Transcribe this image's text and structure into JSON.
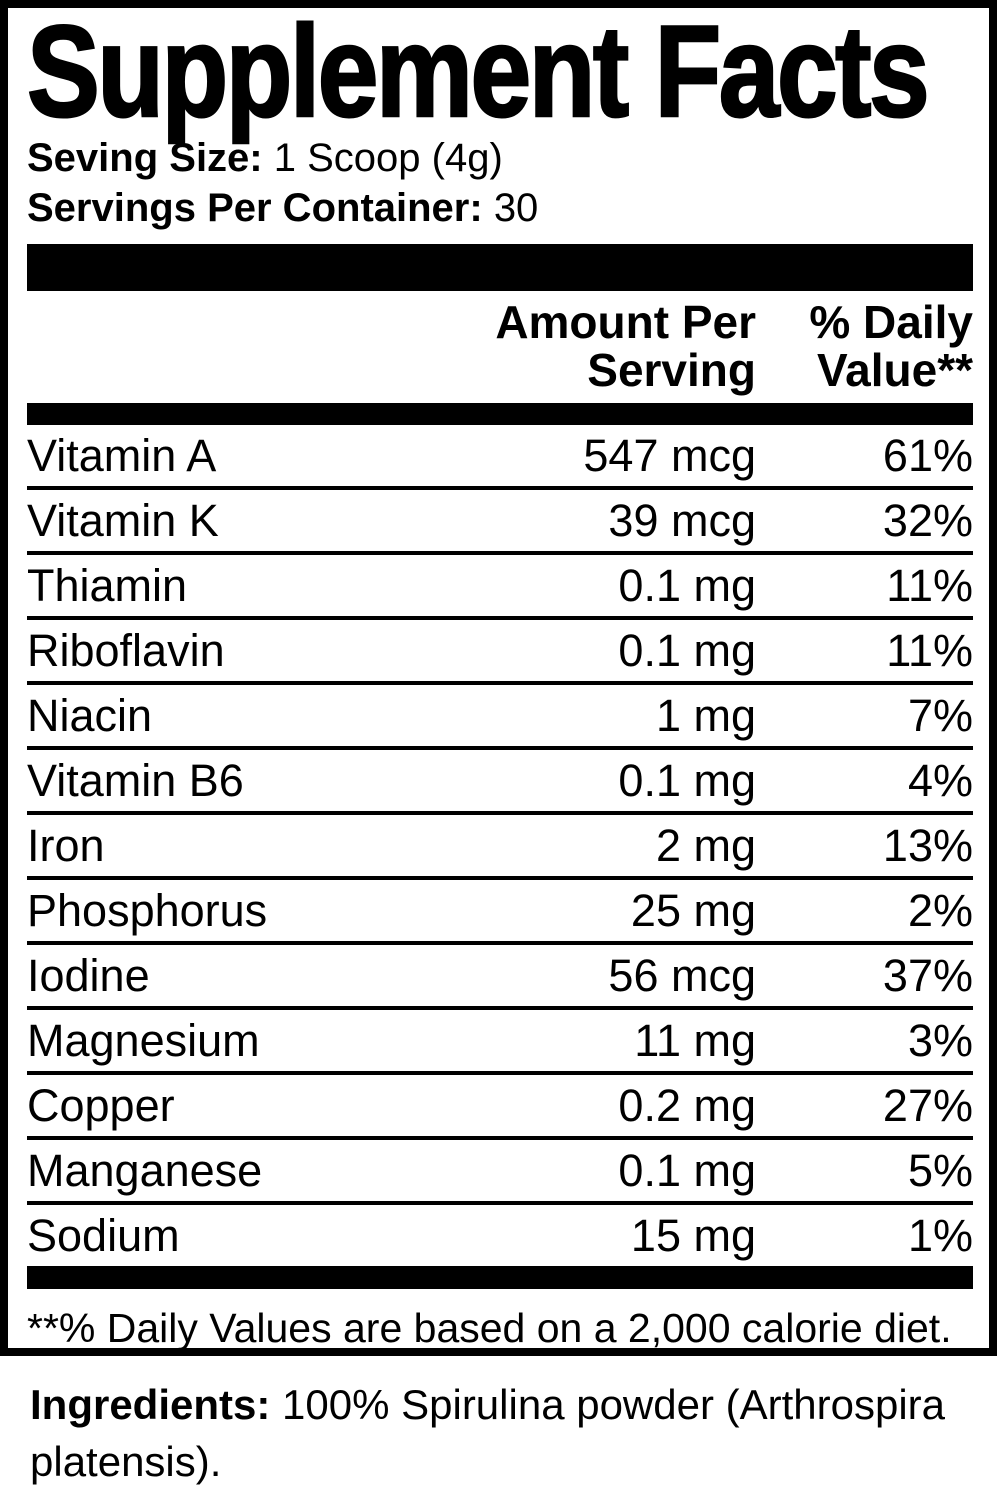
{
  "title": "Supplement Facts",
  "serving": {
    "size_label": "Seving Size:",
    "size_value": "1 Scoop (4g)",
    "per_container_label": "Servings Per Container:",
    "per_container_value": "30"
  },
  "header": {
    "amount": "Amount Per Serving",
    "daily_value": "% Daily Value**"
  },
  "nutrients": [
    {
      "name": "Vitamin A",
      "amount": "547 mcg",
      "dv": "61%"
    },
    {
      "name": "Vitamin K",
      "amount": "39 mcg",
      "dv": "32%"
    },
    {
      "name": "Thiamin",
      "amount": "0.1 mg",
      "dv": "11%"
    },
    {
      "name": "Riboflavin",
      "amount": "0.1 mg",
      "dv": "11%"
    },
    {
      "name": "Niacin",
      "amount": "1 mg",
      "dv": "7%"
    },
    {
      "name": "Vitamin B6",
      "amount": "0.1 mg",
      "dv": "4%"
    },
    {
      "name": "Iron",
      "amount": "2 mg",
      "dv": "13%"
    },
    {
      "name": "Phosphorus",
      "amount": "25 mg",
      "dv": "2%"
    },
    {
      "name": "Iodine",
      "amount": "56 mcg",
      "dv": "37%"
    },
    {
      "name": "Magnesium",
      "amount": "11 mg",
      "dv": "3%"
    },
    {
      "name": "Copper",
      "amount": "0.2 mg",
      "dv": "27%"
    },
    {
      "name": "Manganese",
      "amount": "0.1 mg",
      "dv": "5%"
    },
    {
      "name": "Sodium",
      "amount": "15 mg",
      "dv": "1%"
    }
  ],
  "footnote": "**% Daily Values are based on a 2,000 calorie diet.",
  "ingredients": {
    "label": "Ingredients:",
    "text": "100% Spirulina powder (Arthrospira platensis)."
  },
  "colors": {
    "ink": "#000000",
    "background": "#ffffff"
  }
}
